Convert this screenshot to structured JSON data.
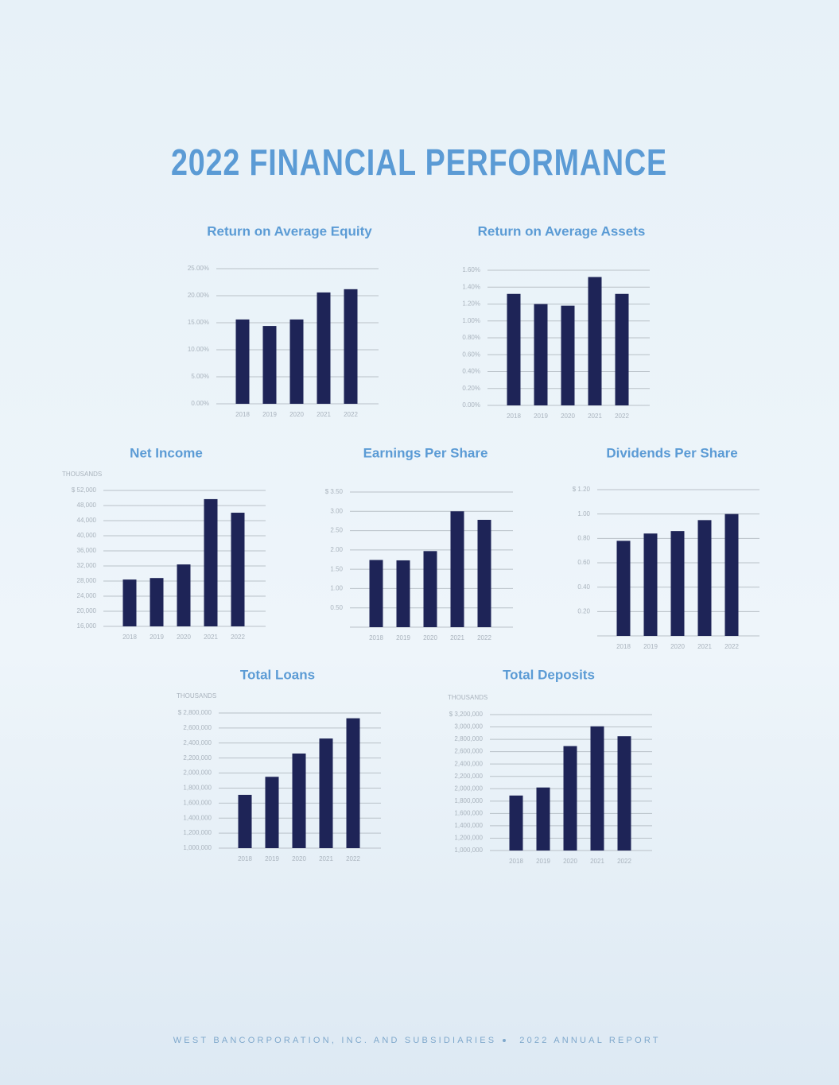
{
  "title": "2022 FINANCIAL PERFORMANCE",
  "footer": {
    "left": "WEST BANCORPORATION, INC. AND SUBSIDIARIES",
    "right": "2022 ANNUAL REPORT"
  },
  "chart_data": [
    {
      "type": "bar",
      "title": "Return on Average Equity",
      "color": "#1e2457",
      "grid": true,
      "categories": [
        "2018",
        "2019",
        "2020",
        "2021",
        "2022"
      ],
      "values": [
        15.6,
        14.4,
        15.6,
        20.6,
        21.2
      ],
      "ylim": [
        0,
        25
      ],
      "yticks": [
        {
          "value": 0,
          "label": "0.00%"
        },
        {
          "value": 5,
          "label": "5.00%"
        },
        {
          "value": 10,
          "label": "10.00%"
        },
        {
          "value": 15,
          "label": "15.00%"
        },
        {
          "value": 20,
          "label": "20.00%"
        },
        {
          "value": 25,
          "label": "25.00%"
        }
      ]
    },
    {
      "type": "bar",
      "title": "Return on Average Assets",
      "color": "#1e2457",
      "grid": true,
      "categories": [
        "2018",
        "2019",
        "2020",
        "2021",
        "2022"
      ],
      "values": [
        1.32,
        1.2,
        1.18,
        1.52,
        1.32
      ],
      "ylim": [
        0,
        1.6
      ],
      "yticks": [
        {
          "value": 0,
          "label": "0.00%"
        },
        {
          "value": 0.2,
          "label": "0.20%"
        },
        {
          "value": 0.4,
          "label": "0.40%"
        },
        {
          "value": 0.6,
          "label": "0.60%"
        },
        {
          "value": 0.8,
          "label": "0.80%"
        },
        {
          "value": 1.0,
          "label": "1.00%"
        },
        {
          "value": 1.2,
          "label": "1.20%"
        },
        {
          "value": 1.4,
          "label": "1.40%"
        },
        {
          "value": 1.6,
          "label": "1.60%"
        }
      ]
    },
    {
      "type": "bar",
      "title": "Net Income",
      "axis_label": "THOUSANDS",
      "color": "#1e2457",
      "grid": true,
      "categories": [
        "2018",
        "2019",
        "2020",
        "2021",
        "2022"
      ],
      "values": [
        28400,
        28800,
        32400,
        49700,
        46100
      ],
      "ylim": [
        16000,
        52000
      ],
      "yticks": [
        {
          "value": 16000,
          "label": "16,000"
        },
        {
          "value": 20000,
          "label": "20,000"
        },
        {
          "value": 24000,
          "label": "24,000"
        },
        {
          "value": 28000,
          "label": "28,000"
        },
        {
          "value": 32000,
          "label": "32,000"
        },
        {
          "value": 36000,
          "label": "36,000"
        },
        {
          "value": 40000,
          "label": "40,000"
        },
        {
          "value": 44000,
          "label": "44,000"
        },
        {
          "value": 48000,
          "label": "48,000"
        },
        {
          "value": 52000,
          "label": "$ 52,000"
        }
      ]
    },
    {
      "type": "bar",
      "title": "Earnings Per Share",
      "color": "#1e2457",
      "grid": true,
      "categories": [
        "2018",
        "2019",
        "2020",
        "2021",
        "2022"
      ],
      "values": [
        1.74,
        1.73,
        1.97,
        3.0,
        2.78
      ],
      "ylim": [
        0,
        3.5
      ],
      "yticks": [
        {
          "value": 0.5,
          "label": "0.50"
        },
        {
          "value": 1.0,
          "label": "1.00"
        },
        {
          "value": 1.5,
          "label": "1.50"
        },
        {
          "value": 2.0,
          "label": "2.00"
        },
        {
          "value": 2.5,
          "label": "2.50"
        },
        {
          "value": 3.0,
          "label": "3.00"
        },
        {
          "value": 3.5,
          "label": "$ 3.50"
        }
      ]
    },
    {
      "type": "bar",
      "title": "Dividends Per Share",
      "color": "#1e2457",
      "grid": true,
      "categories": [
        "2018",
        "2019",
        "2020",
        "2021",
        "2022"
      ],
      "values": [
        0.78,
        0.84,
        0.86,
        0.95,
        1.0
      ],
      "ylim": [
        0,
        1.2
      ],
      "yticks": [
        {
          "value": 0.2,
          "label": "0.20"
        },
        {
          "value": 0.4,
          "label": "0.40"
        },
        {
          "value": 0.6,
          "label": "0.60"
        },
        {
          "value": 0.8,
          "label": "0.80"
        },
        {
          "value": 1.0,
          "label": "1.00"
        },
        {
          "value": 1.2,
          "label": "$ 1.20"
        }
      ]
    },
    {
      "type": "bar",
      "title": "Total Loans",
      "axis_label": "THOUSANDS",
      "color": "#1e2457",
      "grid": true,
      "categories": [
        "2018",
        "2019",
        "2020",
        "2021",
        "2022"
      ],
      "values": [
        1710000,
        1950000,
        2260000,
        2460000,
        2730000
      ],
      "ylim": [
        1000000,
        2800000
      ],
      "yticks": [
        {
          "value": 1000000,
          "label": "1,000,000"
        },
        {
          "value": 1200000,
          "label": "1,200,000"
        },
        {
          "value": 1400000,
          "label": "1,400,000"
        },
        {
          "value": 1600000,
          "label": "1,600,000"
        },
        {
          "value": 1800000,
          "label": "1,800,000"
        },
        {
          "value": 2000000,
          "label": "2,000,000"
        },
        {
          "value": 2200000,
          "label": "2,200,000"
        },
        {
          "value": 2400000,
          "label": "2,400,000"
        },
        {
          "value": 2600000,
          "label": "2,600,000"
        },
        {
          "value": 2800000,
          "label": "$ 2,800,000"
        }
      ]
    },
    {
      "type": "bar",
      "title": "Total Deposits",
      "axis_label": "THOUSANDS",
      "color": "#1e2457",
      "grid": true,
      "categories": [
        "2018",
        "2019",
        "2020",
        "2021",
        "2022"
      ],
      "values": [
        1890000,
        2020000,
        2690000,
        3010000,
        2850000
      ],
      "ylim": [
        1000000,
        3200000
      ],
      "yticks": [
        {
          "value": 1000000,
          "label": "1,000,000"
        },
        {
          "value": 1200000,
          "label": "1,200,000"
        },
        {
          "value": 1400000,
          "label": "1,400,000"
        },
        {
          "value": 1600000,
          "label": "1,600,000"
        },
        {
          "value": 1800000,
          "label": "1,800,000"
        },
        {
          "value": 2000000,
          "label": "2,000,000"
        },
        {
          "value": 2200000,
          "label": "2,200,000"
        },
        {
          "value": 2400000,
          "label": "2,400,000"
        },
        {
          "value": 2600000,
          "label": "2,600,000"
        },
        {
          "value": 2800000,
          "label": "2,800,000"
        },
        {
          "value": 3000000,
          "label": "3,000,000"
        },
        {
          "value": 3200000,
          "label": "$ 3,200,000"
        }
      ]
    }
  ]
}
